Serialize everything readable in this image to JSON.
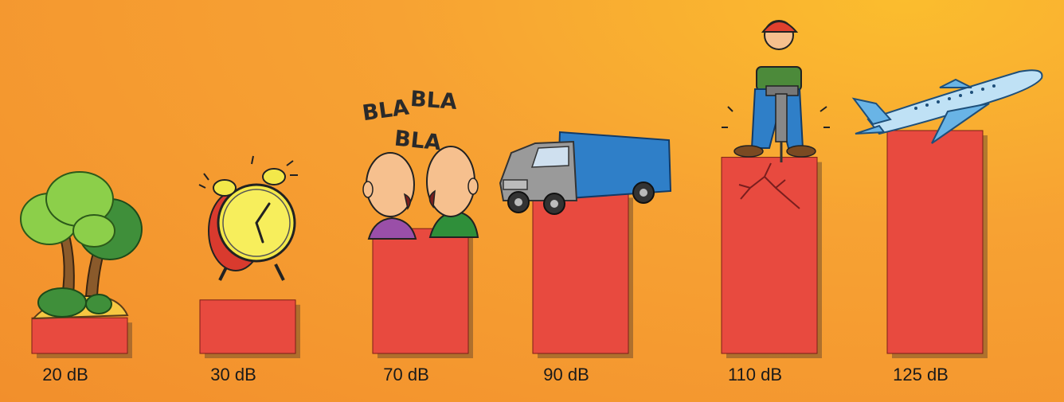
{
  "chart_data": {
    "type": "bar",
    "categories": [
      "20 dB",
      "30 dB",
      "70 dB",
      "90 dB",
      "110 dB",
      "125 dB"
    ],
    "values": [
      20,
      30,
      70,
      90,
      110,
      125
    ],
    "title": "",
    "xlabel": "",
    "ylabel": "",
    "ylim": [
      0,
      130
    ],
    "grid": false,
    "legend": "none",
    "bar_color": "#e84a3f",
    "icons": [
      "trees-icon",
      "alarm-clock-icon",
      "talking-people-icon",
      "truck-icon",
      "jackhammer-worker-icon",
      "airplane-icon"
    ]
  },
  "speech": [
    "BLA",
    "BLA",
    "BLA"
  ]
}
